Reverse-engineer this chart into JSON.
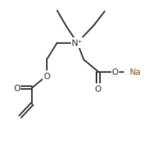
{
  "bg_color": "#ffffff",
  "line_color": "#2b2b3b",
  "na_color": "#8B4513",
  "bond_lw": 1.5,
  "font_size": 8.5,
  "fig_width": 2.27,
  "fig_height": 2.05,
  "dpi": 100,
  "xlim": [
    0,
    10
  ],
  "ylim": [
    0,
    9
  ]
}
